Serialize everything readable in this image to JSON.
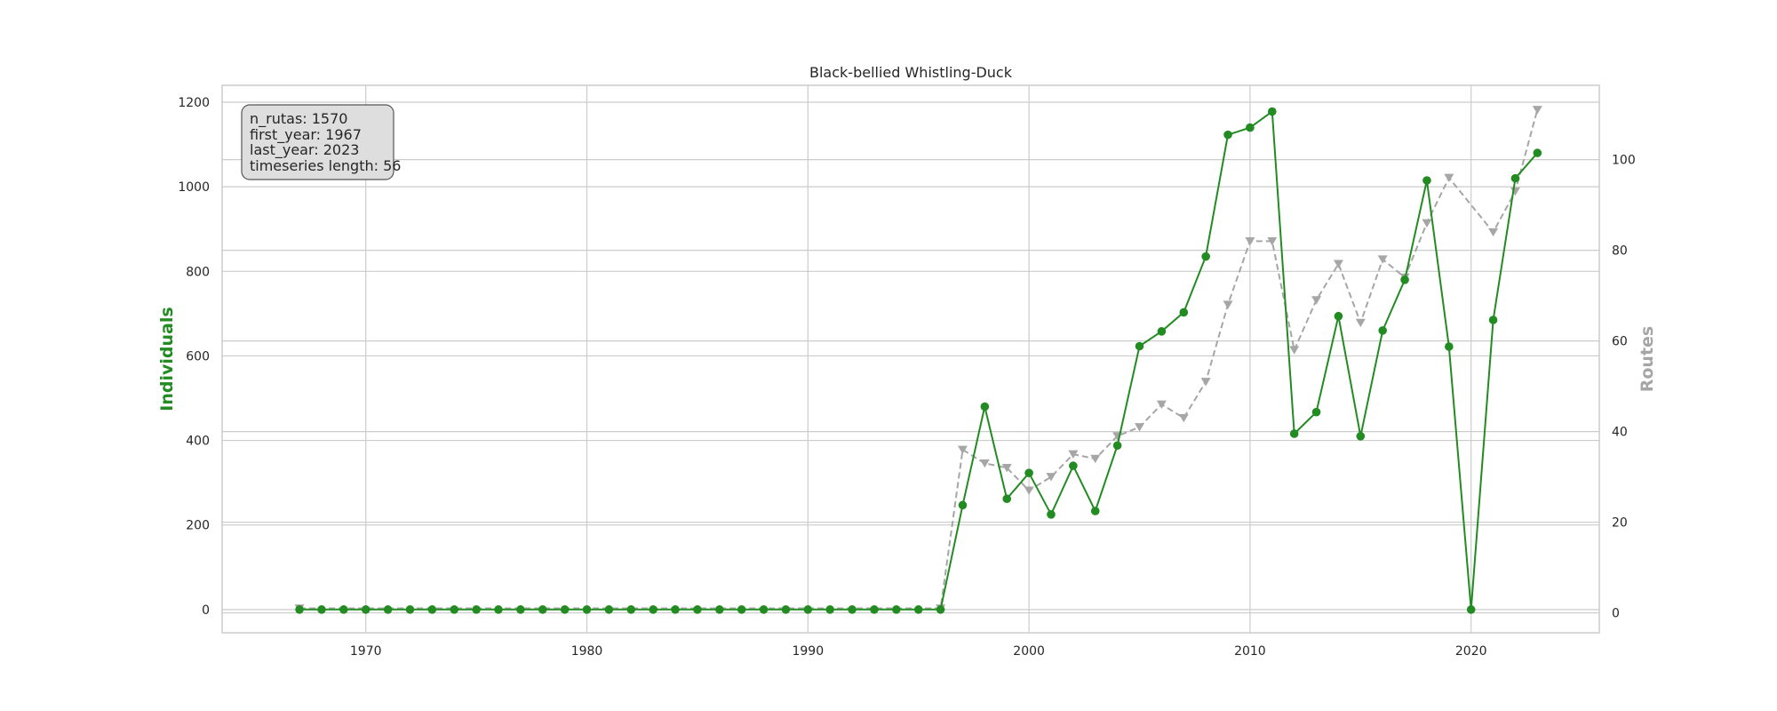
{
  "chart_data": {
    "type": "line",
    "title": "Black-bellied Whistling-Duck",
    "xlabel": "",
    "ylabel": "Individuals",
    "ylabel_right": "Routes",
    "xlim": [
      1963.5,
      2025.8
    ],
    "ylim": [
      -55,
      1240
    ],
    "ylim_right": [
      -4.4,
      116.4
    ],
    "x_ticks": [
      1970,
      1980,
      1990,
      2000,
      2010,
      2020
    ],
    "y_ticks": [
      0,
      200,
      400,
      600,
      800,
      1000,
      1200
    ],
    "y_ticks_right": [
      0,
      20,
      40,
      60,
      80,
      100
    ],
    "grid": true,
    "info_box": [
      "n_rutas: 1570",
      "first_year: 1967",
      "last_year: 2023",
      "timeseries length: 56"
    ],
    "series": [
      {
        "name": "Individuals",
        "axis": "left",
        "color": "#228B22",
        "marker": "circle",
        "linestyle": "solid",
        "x": [
          1967,
          1968,
          1969,
          1970,
          1971,
          1972,
          1973,
          1974,
          1975,
          1976,
          1977,
          1978,
          1979,
          1980,
          1981,
          1982,
          1983,
          1984,
          1985,
          1986,
          1987,
          1988,
          1989,
          1990,
          1991,
          1992,
          1993,
          1994,
          1995,
          1996,
          1997,
          1998,
          1999,
          2000,
          2001,
          2002,
          2003,
          2004,
          2005,
          2006,
          2007,
          2008,
          2009,
          2010,
          2011,
          2012,
          2013,
          2014,
          2015,
          2016,
          2017,
          2018,
          2019,
          2020,
          2021,
          2022,
          2023
        ],
        "values": [
          0,
          0,
          0,
          0,
          0,
          0,
          0,
          0,
          0,
          0,
          0,
          0,
          0,
          0,
          0,
          0,
          0,
          0,
          0,
          0,
          0,
          0,
          0,
          0,
          0,
          0,
          0,
          0,
          0,
          0,
          247,
          480,
          262,
          323,
          225,
          340,
          233,
          388,
          623,
          658,
          703,
          835,
          1123,
          1140,
          1178,
          416,
          467,
          694,
          410,
          660,
          780,
          1015,
          622,
          0,
          685,
          1020,
          1080
        ]
      },
      {
        "name": "Routes",
        "axis": "right",
        "color": "#a6a6a6",
        "marker": "triangle-down",
        "linestyle": "dashed",
        "x": [
          1967,
          1996,
          1997,
          1998,
          1999,
          2000,
          2001,
          2002,
          2003,
          2004,
          2005,
          2006,
          2007,
          2008,
          2009,
          2010,
          2011,
          2012,
          2013,
          2014,
          2015,
          2016,
          2017,
          2018,
          2019,
          2021,
          2022,
          2023
        ],
        "values": [
          1,
          1,
          36,
          33,
          32,
          27,
          30,
          35,
          34,
          39,
          41,
          46,
          43,
          51,
          68,
          82,
          82,
          58,
          69,
          77,
          64,
          78,
          74,
          86,
          96,
          84,
          93,
          111
        ]
      }
    ]
  }
}
